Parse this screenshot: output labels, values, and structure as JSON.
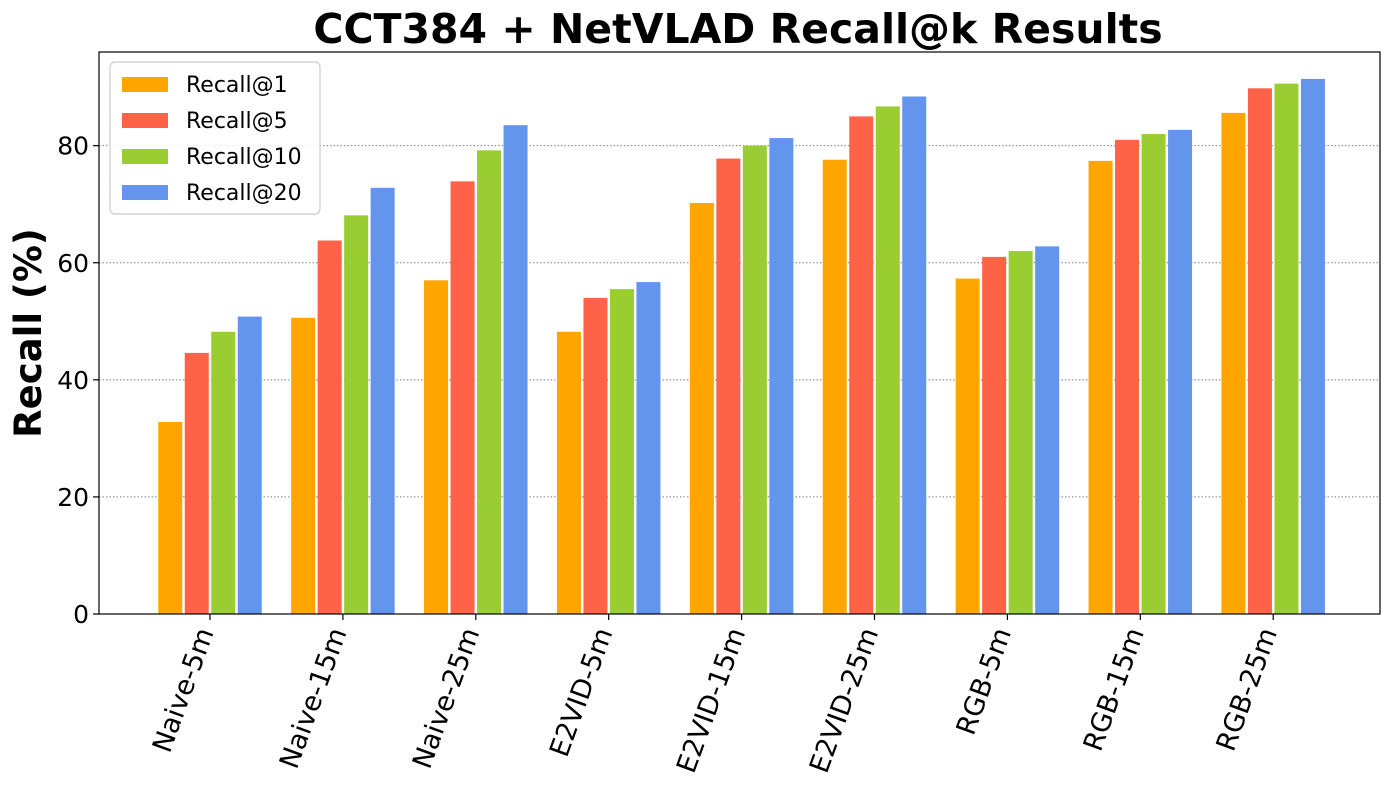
{
  "chart_data": {
    "type": "bar",
    "title": "CCT384 + NetVLAD Recall@k Results",
    "xlabel": "",
    "ylabel": "Recall (%)",
    "ylim": [
      0,
      96
    ],
    "yticks": [
      0,
      20,
      40,
      60,
      80
    ],
    "grid": "horizontal dotted",
    "legend_position": "top-left",
    "categories": [
      "Naive-5m",
      "Naive-15m",
      "Naive-25m",
      "E2VID-5m",
      "E2VID-15m",
      "E2VID-25m",
      "RGB-5m",
      "RGB-15m",
      "RGB-25m"
    ],
    "x_tick_rotation": 70,
    "series": [
      {
        "name": "Recall@1",
        "color": "#ffa500",
        "values": [
          32.8,
          50.6,
          57.0,
          48.2,
          70.2,
          77.6,
          57.3,
          77.4,
          85.6
        ]
      },
      {
        "name": "Recall@5",
        "color": "#ff6347",
        "values": [
          44.6,
          63.8,
          73.9,
          54.0,
          77.8,
          85.0,
          61.0,
          81.0,
          89.8
        ]
      },
      {
        "name": "Recall@10",
        "color": "#9acd32",
        "values": [
          48.2,
          68.1,
          79.2,
          55.5,
          80.0,
          86.7,
          62.0,
          82.0,
          90.6
        ]
      },
      {
        "name": "Recall@20",
        "color": "#6495ed",
        "values": [
          50.8,
          72.8,
          83.5,
          56.7,
          81.3,
          88.4,
          62.8,
          82.7,
          91.4
        ]
      }
    ]
  }
}
